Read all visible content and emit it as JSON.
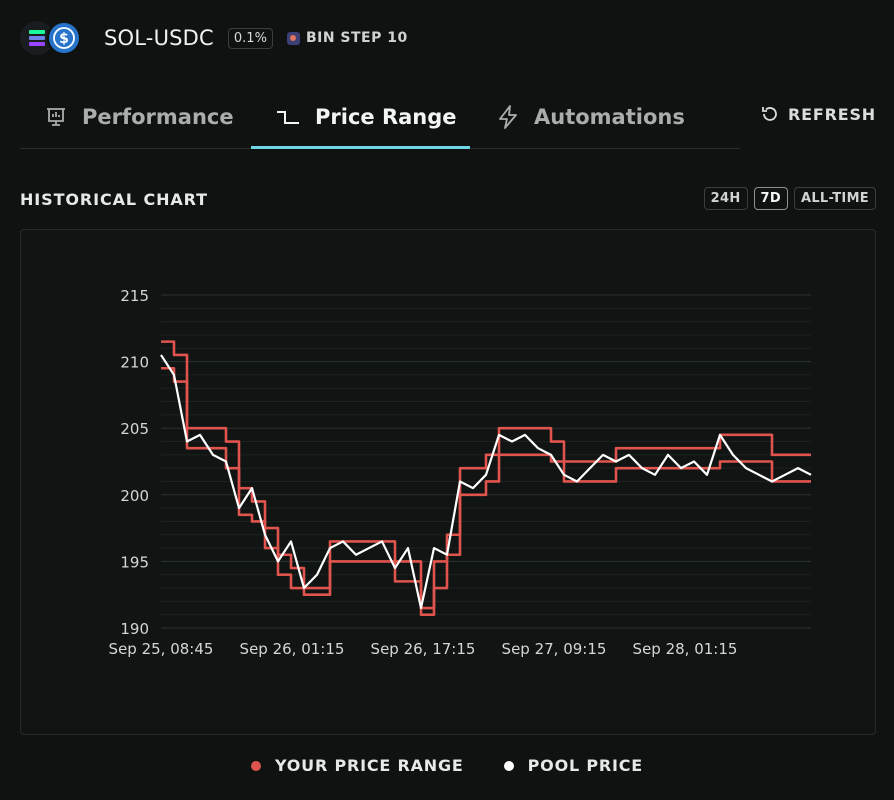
{
  "header": {
    "pair": "SOL-USDC",
    "fee": "0.1%",
    "bin_step": "BIN STEP 10"
  },
  "tabs": [
    {
      "label": "Performance"
    },
    {
      "label": "Price Range"
    },
    {
      "label": "Automations"
    }
  ],
  "refresh_label": "REFRESH",
  "section_title": "HISTORICAL CHART",
  "range_buttons": [
    "24H",
    "7D",
    "ALL-TIME"
  ],
  "selected_range": "7D",
  "colors": {
    "range": "#e0544e",
    "pool": "#ffffff",
    "accent": "#6fd6e4",
    "sol_gradient": [
      "#9945ff",
      "#19fb9b"
    ],
    "usdc": "#2775ca"
  },
  "legend": {
    "range_label": "YOUR PRICE RANGE",
    "pool_label": "POOL PRICE"
  },
  "chart_data": {
    "type": "line",
    "ylim": [
      190,
      215
    ],
    "yticks": [
      190,
      195,
      200,
      205,
      210,
      215
    ],
    "xticks": [
      "Sep 25, 08:45",
      "Sep 26, 01:15",
      "Sep 26, 17:15",
      "Sep 27, 09:15",
      "Sep 28, 01:15"
    ],
    "grid": true,
    "x": [
      0,
      0.02,
      0.04,
      0.06,
      0.08,
      0.1,
      0.12,
      0.14,
      0.16,
      0.18,
      0.2,
      0.22,
      0.24,
      0.26,
      0.28,
      0.3,
      0.32,
      0.34,
      0.36,
      0.38,
      0.4,
      0.42,
      0.44,
      0.46,
      0.48,
      0.5,
      0.52,
      0.54,
      0.56,
      0.58,
      0.6,
      0.62,
      0.64,
      0.66,
      0.68,
      0.7,
      0.72,
      0.74,
      0.76,
      0.78,
      0.8,
      0.82,
      0.84,
      0.86,
      0.88,
      0.9,
      0.92,
      0.94,
      0.96,
      0.98,
      1.0
    ],
    "series": [
      {
        "name": "YOUR PRICE RANGE",
        "values": [
          211.5,
          210.5,
          205.0,
          205.0,
          205.0,
          204.0,
          200.5,
          199.5,
          197.5,
          195.5,
          194.5,
          193.0,
          193.0,
          196.5,
          196.5,
          196.5,
          196.5,
          196.5,
          195.0,
          195.0,
          191.5,
          195.0,
          197.0,
          202.0,
          202.0,
          203.0,
          205.0,
          205.0,
          205.0,
          205.0,
          204.0,
          202.5,
          202.5,
          202.5,
          202.5,
          203.5,
          203.5,
          203.5,
          203.5,
          203.5,
          203.5,
          203.5,
          203.5,
          204.5,
          204.5,
          204.5,
          204.5,
          203.0,
          203.0,
          203.0,
          203.0
        ]
      },
      {
        "name": "YOUR PRICE RANGE",
        "values": [
          209.5,
          208.5,
          203.5,
          203.5,
          203.5,
          202.0,
          198.5,
          198.0,
          196.0,
          194.0,
          193.0,
          192.5,
          192.5,
          195.0,
          195.0,
          195.0,
          195.0,
          195.0,
          193.5,
          193.5,
          191.0,
          193.0,
          195.5,
          200.0,
          200.0,
          201.0,
          203.0,
          203.0,
          203.0,
          203.0,
          202.5,
          201.0,
          201.0,
          201.0,
          201.0,
          202.0,
          202.0,
          202.0,
          202.0,
          202.0,
          202.0,
          202.0,
          202.0,
          202.5,
          202.5,
          202.5,
          202.5,
          201.0,
          201.0,
          201.0,
          201.0
        ]
      },
      {
        "name": "POOL PRICE",
        "values": [
          210.5,
          209.0,
          204.0,
          204.5,
          203.0,
          202.5,
          199.0,
          200.5,
          197.0,
          195.0,
          196.5,
          193.0,
          194.0,
          196.0,
          196.5,
          195.5,
          196.0,
          196.5,
          194.5,
          196.0,
          191.5,
          196.0,
          195.5,
          201.0,
          200.5,
          201.5,
          204.5,
          204.0,
          204.5,
          203.5,
          203.0,
          201.5,
          201.0,
          202.0,
          203.0,
          202.5,
          203.0,
          202.0,
          201.5,
          203.0,
          202.0,
          202.5,
          201.5,
          204.5,
          203.0,
          202.0,
          201.5,
          201.0,
          201.5,
          202.0,
          201.5
        ]
      }
    ]
  }
}
